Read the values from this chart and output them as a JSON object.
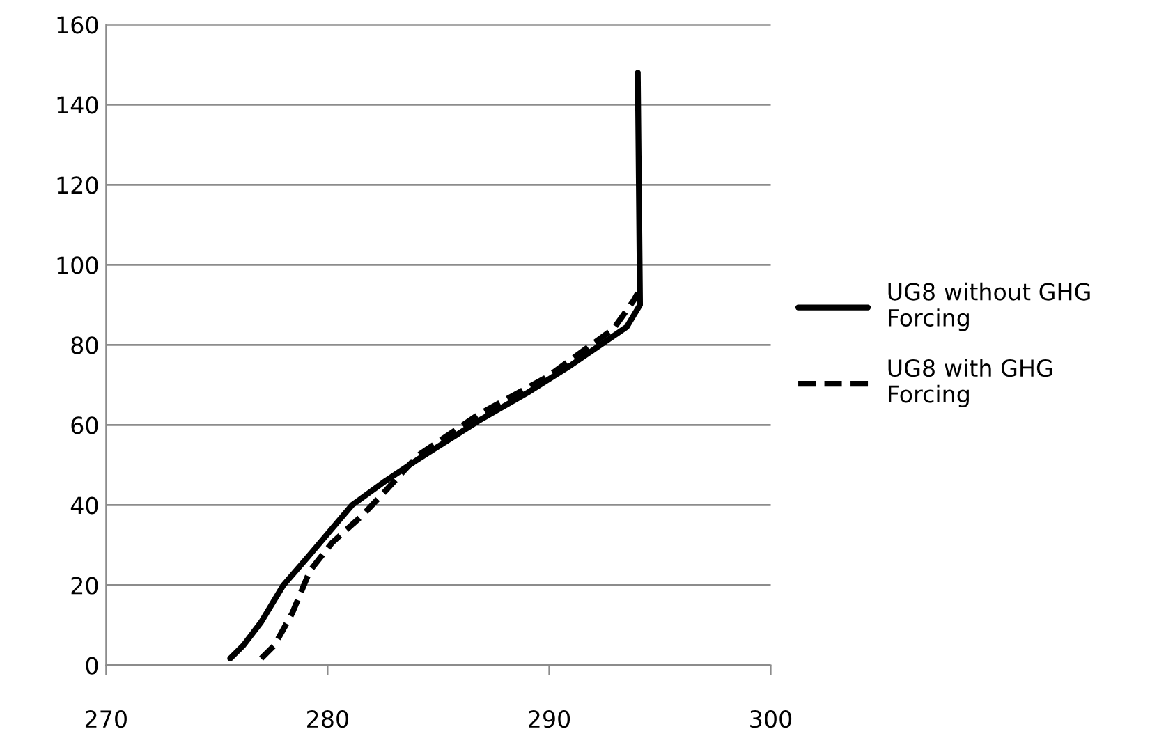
{
  "chart_data": {
    "type": "line",
    "xlim": [
      270,
      300
    ],
    "xticks": [
      270,
      280,
      290,
      300
    ],
    "ylim": [
      0,
      160
    ],
    "yticks": [
      0,
      20,
      40,
      60,
      80,
      100,
      120,
      140,
      160
    ],
    "grid": "y",
    "legend": "right",
    "marker": "none",
    "series": [
      {
        "name": "UG8 without GHG Forcing",
        "color": "#000000",
        "line_style": "solid",
        "x": [
          275.6,
          276.2,
          277.0,
          278.0,
          279.1,
          281.1,
          282.6,
          284.1,
          286.8,
          289.0,
          291.0,
          293.5,
          294.1,
          294.0
        ],
        "values": [
          1.7,
          5,
          10.8,
          20,
          27,
          40,
          46,
          51.5,
          61,
          68,
          75,
          84.5,
          90,
          148
        ]
      },
      {
        "name": "UG8 with GHG Forcing",
        "color": "#000000",
        "line_style": "dashed",
        "x": [
          277.0,
          277.6,
          278.4,
          279.2,
          280.2,
          281.6,
          282.6,
          284.1,
          286.8,
          289.9,
          292.9,
          293.8,
          294.0
        ],
        "values": [
          1.7,
          5,
          13,
          23.6,
          30.6,
          37.6,
          43.5,
          52.5,
          62.6,
          72,
          84,
          91,
          93
        ]
      }
    ]
  }
}
